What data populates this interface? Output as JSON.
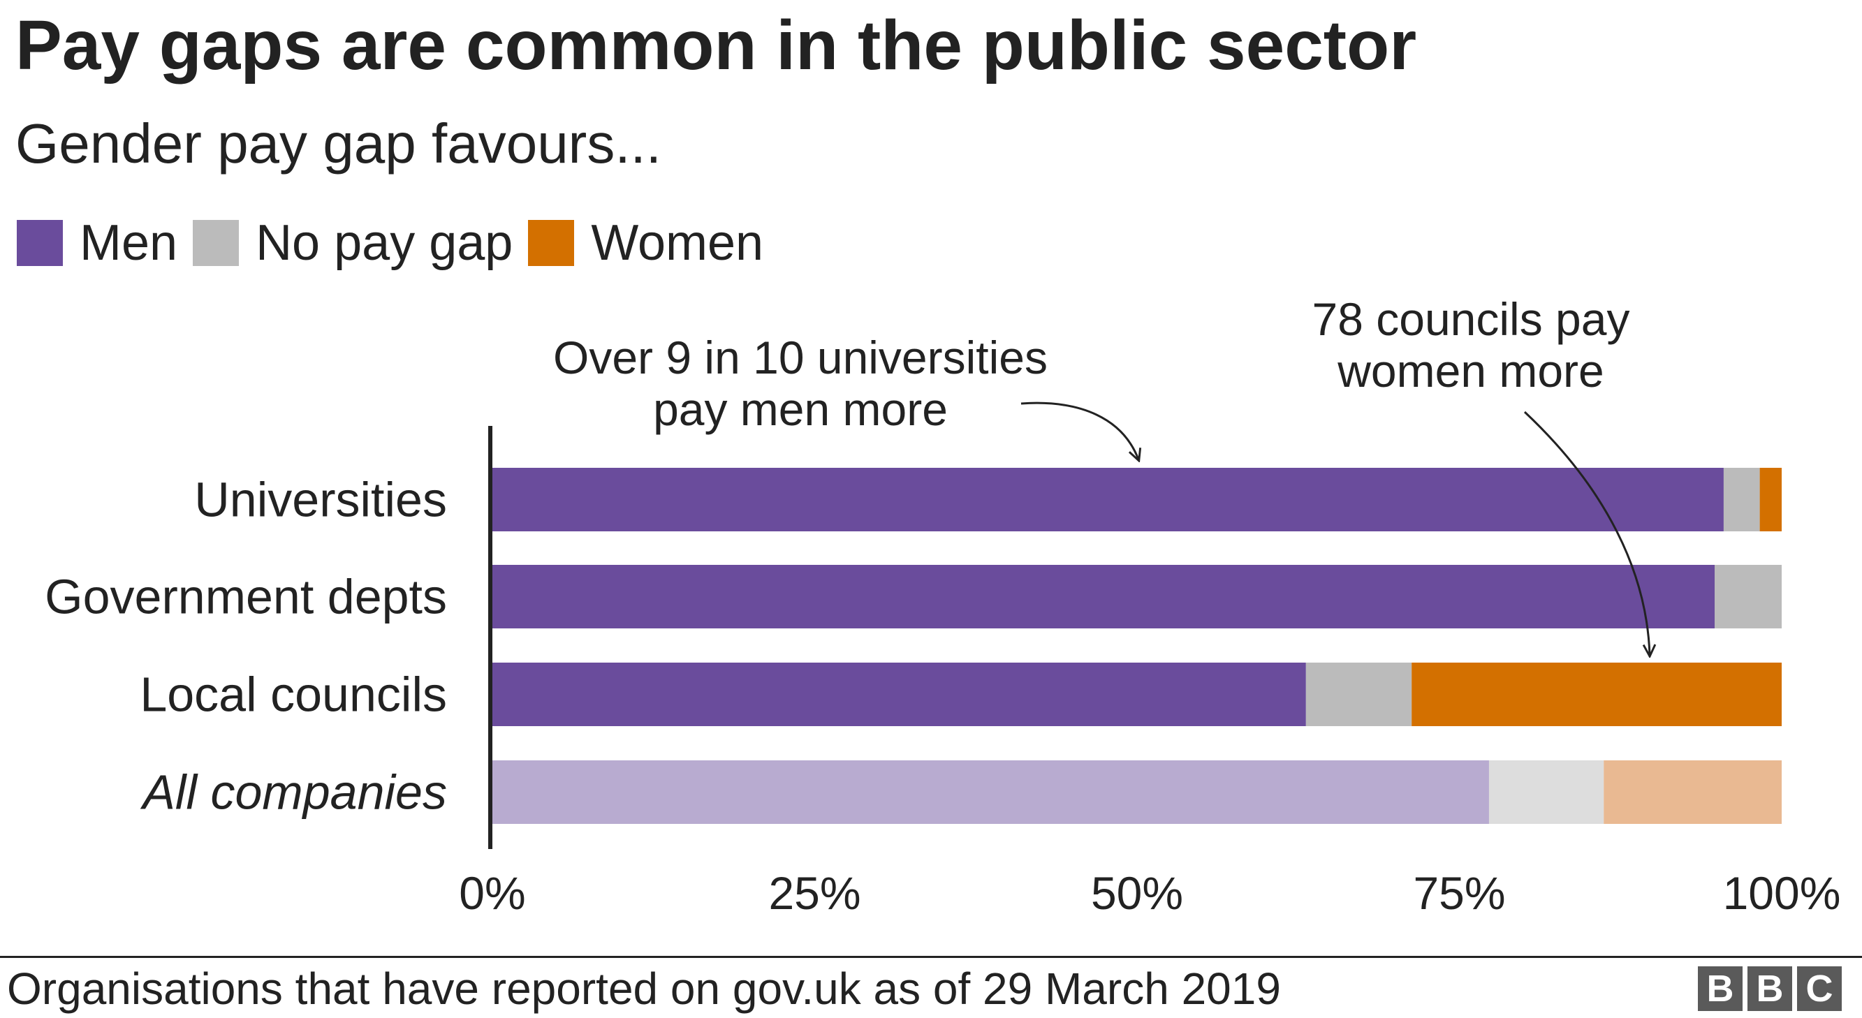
{
  "chart_data": {
    "type": "bar",
    "orientation": "horizontal",
    "stacked": true,
    "title": "Pay gaps are common in the public sector",
    "subtitle": "Gender pay gap favours...",
    "categories": [
      "Universities",
      "Government depts",
      "Local councils",
      "All companies"
    ],
    "category_styles": [
      "normal",
      "normal",
      "normal",
      "italic"
    ],
    "series": [
      {
        "name": "Men",
        "color": "#6a4c9c",
        "muted_color": "#b8abd0",
        "values": [
          95.5,
          94.8,
          63.1,
          77.3
        ]
      },
      {
        "name": "No pay gap",
        "color": "#bbbbbb",
        "muted_color": "#dddddd",
        "values": [
          2.8,
          5.2,
          8.2,
          8.9
        ]
      },
      {
        "name": "Women",
        "color": "#d37000",
        "muted_color": "#e9b992",
        "values": [
          1.7,
          0.0,
          28.7,
          13.8
        ]
      }
    ],
    "muted_categories": [
      "All companies"
    ],
    "x_ticks": [
      "0%",
      "25%",
      "50%",
      "75%",
      "100%"
    ],
    "tick_values": [
      0,
      25,
      50,
      75,
      100
    ],
    "xlim": [
      0,
      100
    ],
    "grid": false,
    "legend_position": "top-left",
    "annotations": [
      {
        "text_lines": [
          "Over 9 in 10 universities",
          "pay men more"
        ],
        "points_to": {
          "category": "Universities",
          "value": 50
        }
      },
      {
        "text_lines": [
          "78 councils pay",
          "women more"
        ],
        "points_to": {
          "category": "Local councils",
          "value": 90
        }
      }
    ]
  },
  "footer": {
    "source": "Organisations that have reported on gov.uk as of 29 March 2019",
    "logo_letters": [
      "B",
      "B",
      "C"
    ]
  }
}
